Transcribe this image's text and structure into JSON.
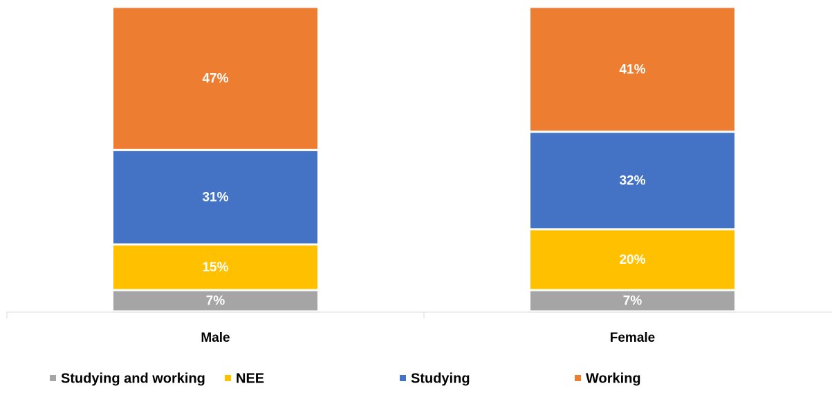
{
  "chart_data": {
    "type": "stacked_bar",
    "categories": [
      "Male",
      "Female"
    ],
    "series": [
      {
        "name": "Studying and working",
        "color": "#a5a5a5",
        "values": [
          7,
          7
        ],
        "value_labels": [
          "7%",
          "7%"
        ]
      },
      {
        "name": "NEE",
        "color": "#ffc000",
        "values": [
          15,
          20
        ],
        "value_labels": [
          "15%",
          "20%"
        ]
      },
      {
        "name": "Studying",
        "color": "#4472c4",
        "values": [
          31,
          32
        ],
        "value_labels": [
          "31%",
          "32%"
        ]
      },
      {
        "name": "Working",
        "color": "#ed7d31",
        "values": [
          47,
          41
        ],
        "value_labels": [
          "47%",
          "41%"
        ]
      }
    ],
    "ylim": [
      0,
      100
    ]
  }
}
